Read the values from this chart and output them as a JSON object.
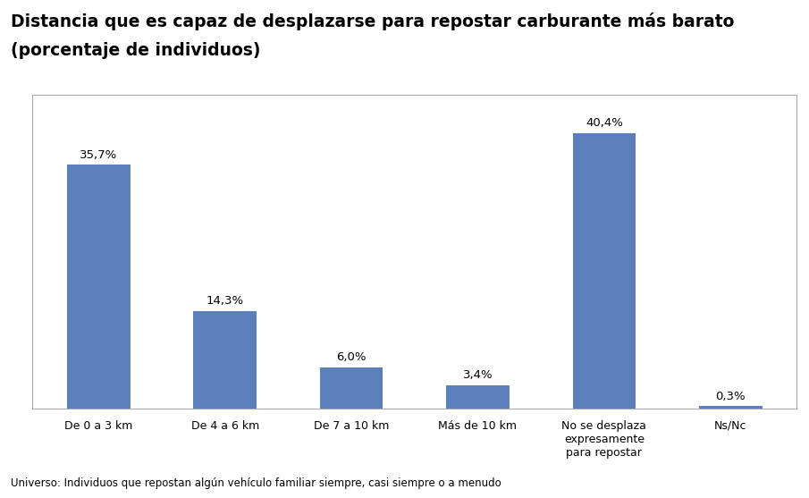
{
  "title_line1": "Distancia que es capaz de desplazarse para repostar carburante más barato",
  "title_line2": "(porcentaje de individuos)",
  "categories": [
    "De 0 a 3 km",
    "De 4 a 6 km",
    "De 7 a 10 km",
    "Más de 10 km",
    "No se desplaza\nexpresamente\npara repostar",
    "Ns/Nc"
  ],
  "values": [
    35.7,
    14.3,
    6.0,
    3.4,
    40.4,
    0.3
  ],
  "labels": [
    "35,7%",
    "14,3%",
    "6,0%",
    "3,4%",
    "40,4%",
    "0,3%"
  ],
  "bar_color": "#5b7fbb",
  "background_color": "#ffffff",
  "plot_bg_color": "#ffffff",
  "border_color": "#aaaaaa",
  "ylim": [
    0,
    46
  ],
  "footnote": "Universo: Individuos que repostan algún vehículo familiar siempre, casi siempre o a menudo",
  "title_fontsize": 13.5,
  "label_fontsize": 9.5,
  "tick_fontsize": 9,
  "footnote_fontsize": 8.5
}
